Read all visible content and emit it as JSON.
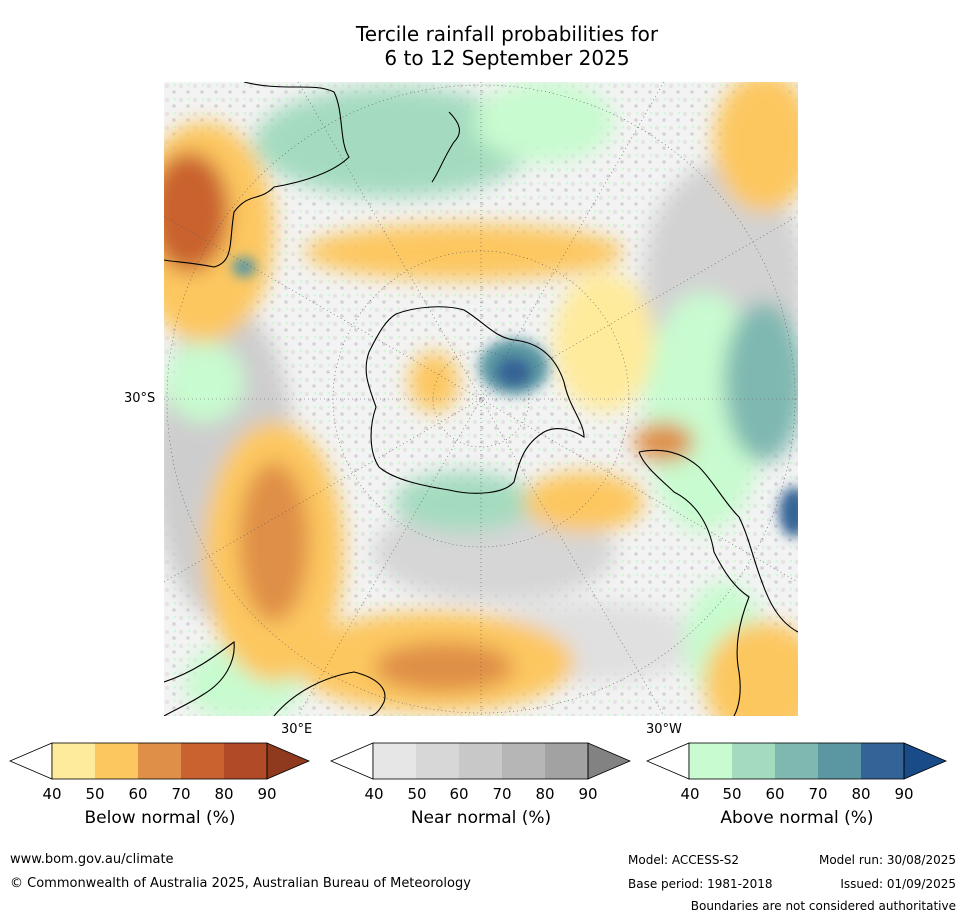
{
  "title_line1": "Tercile rainfall probabilities for",
  "title_line2": "6 to 12 September 2025",
  "map": {
    "lat_label": "30°S",
    "lon_labels": [
      "30°E",
      "30°W"
    ]
  },
  "colorbars": [
    {
      "label": "Below normal (%)",
      "ticks": [
        "40",
        "50",
        "60",
        "70",
        "80",
        "90"
      ],
      "colors": [
        "#ffeb9c",
        "#fdc760",
        "#df8f47",
        "#c9622f",
        "#b14a27",
        "#8f3a1f"
      ]
    },
    {
      "label": "Near normal (%)",
      "ticks": [
        "40",
        "50",
        "60",
        "70",
        "80",
        "90"
      ],
      "colors": [
        "#e6e6e6",
        "#d7d7d7",
        "#c8c8c8",
        "#b6b6b6",
        "#a2a2a2",
        "#828282"
      ]
    },
    {
      "label": "Above normal (%)",
      "ticks": [
        "40",
        "50",
        "60",
        "70",
        "80",
        "90"
      ],
      "colors": [
        "#c8fbcf",
        "#a4dbbf",
        "#7fb8b1",
        "#5a97a3",
        "#346397",
        "#184b87"
      ]
    }
  ],
  "footer": {
    "website": "www.bom.gov.au/climate",
    "copyright": "© Commonwealth of Australia 2025, Australian Bureau of Meteorology",
    "model": "Model: ACCESS-S2",
    "base_period": "Base period: 1981-2018",
    "model_run": "Model run: 30/08/2025",
    "issued": "Issued: 01/09/2025",
    "boundaries": "Boundaries are not considered authoritative"
  }
}
